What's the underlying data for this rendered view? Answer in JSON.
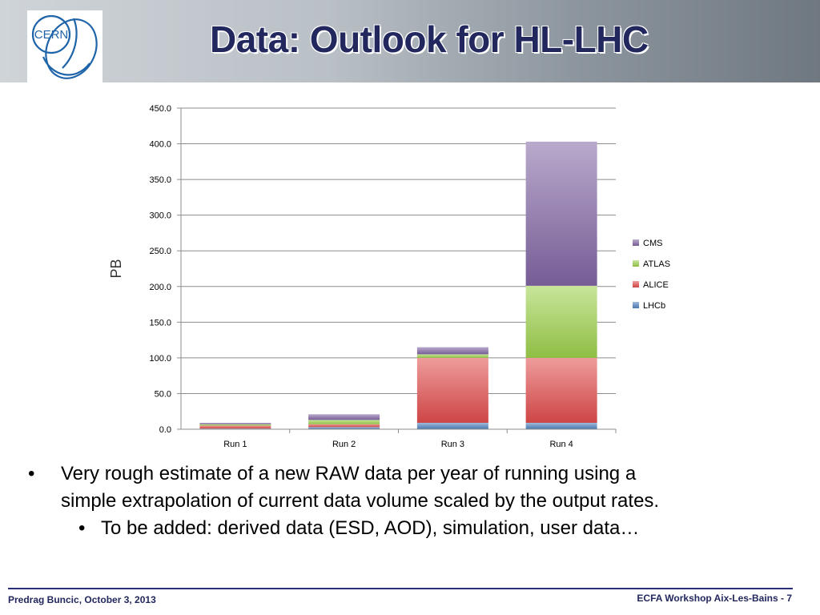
{
  "slide": {
    "title": "Data: Outlook for HL-LHC",
    "logo_text": "CERN",
    "bullets": [
      "Very rough estimate of a new RAW data per year of running using a",
      "simple extrapolation of current data volume scaled by the output rates.",
      "To be added: derived data (ESD, AOD), simulation, user data…"
    ],
    "bullet_marker": "•",
    "footer_left": "Predrag Buncic, October 3, 2013",
    "footer_right": "ECFA  Workshop Aix-Les-Bains -  7"
  },
  "chart_data": {
    "type": "bar",
    "stacked": true,
    "categories": [
      "Run 1",
      "Run 2",
      "Run 3",
      "Run 4"
    ],
    "series": [
      {
        "name": "LHCb",
        "values": [
          1,
          3,
          9,
          9
        ],
        "color": "#4f81bd"
      },
      {
        "name": "ALICE",
        "values": [
          4,
          4,
          91,
          91
        ],
        "color": "#e04b4b"
      },
      {
        "name": "ATLAS",
        "values": [
          2,
          6,
          5,
          101
        ],
        "color": "#9bcf4a"
      },
      {
        "name": "CMS",
        "values": [
          2,
          8,
          10,
          202
        ],
        "color": "#8064a2"
      }
    ],
    "ylabel": "PB",
    "xlabel": "",
    "ylim": [
      0,
      450
    ],
    "yticks": [
      "0.0",
      "50.0",
      "100.0",
      "150.0",
      "200.0",
      "250.0",
      "300.0",
      "350.0",
      "400.0",
      "450.0"
    ],
    "grid": true,
    "legend": "right"
  }
}
